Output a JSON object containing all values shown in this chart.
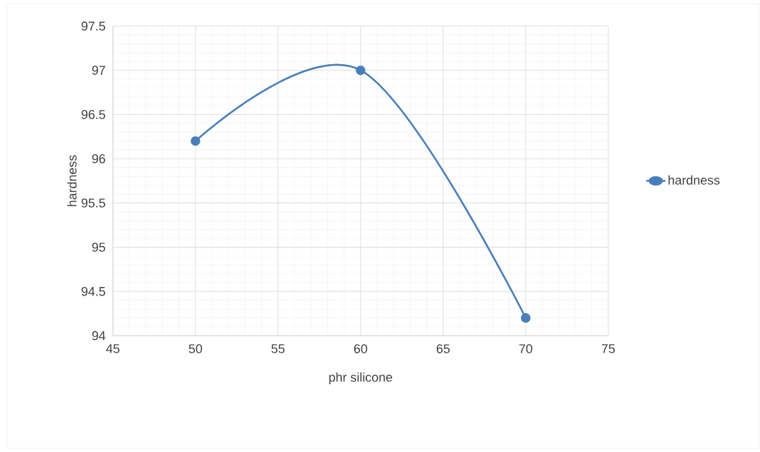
{
  "chart_data": {
    "type": "line",
    "xlabel": "phr silicone",
    "ylabel": "hardness",
    "x": [
      50,
      60,
      70
    ],
    "series": [
      {
        "name": "hardness",
        "color": "#4a7ebb",
        "values": [
          96.2,
          97.0,
          94.2
        ]
      }
    ],
    "xlim": [
      45,
      75
    ],
    "ylim": [
      94,
      97.5
    ],
    "xticks": [
      45,
      50,
      55,
      60,
      65,
      70,
      75
    ],
    "yticks": [
      94,
      94.5,
      95,
      95.5,
      96,
      96.5,
      97,
      97.5
    ],
    "grid": true,
    "legend": "right",
    "marker": "circle"
  }
}
